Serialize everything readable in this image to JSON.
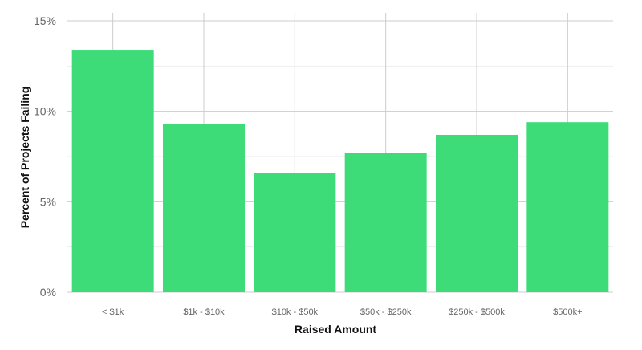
{
  "chart_data": {
    "type": "bar",
    "title": "",
    "xlabel": "Raised Amount",
    "ylabel": "Percent of Projects Failing",
    "categories": [
      "< $1k",
      "$1k - $10k",
      "$10k - $50k",
      "$50k - $250k",
      "$250k - $500k",
      "$500k+"
    ],
    "values": [
      13.4,
      9.3,
      6.6,
      7.7,
      8.7,
      9.4
    ],
    "ylim": [
      0,
      15
    ],
    "yticks": [
      0,
      5,
      10,
      15
    ],
    "ytick_labels": [
      "0%",
      "5%",
      "10%",
      "15%"
    ],
    "grid": true,
    "bar_color": "#3ddc78"
  }
}
